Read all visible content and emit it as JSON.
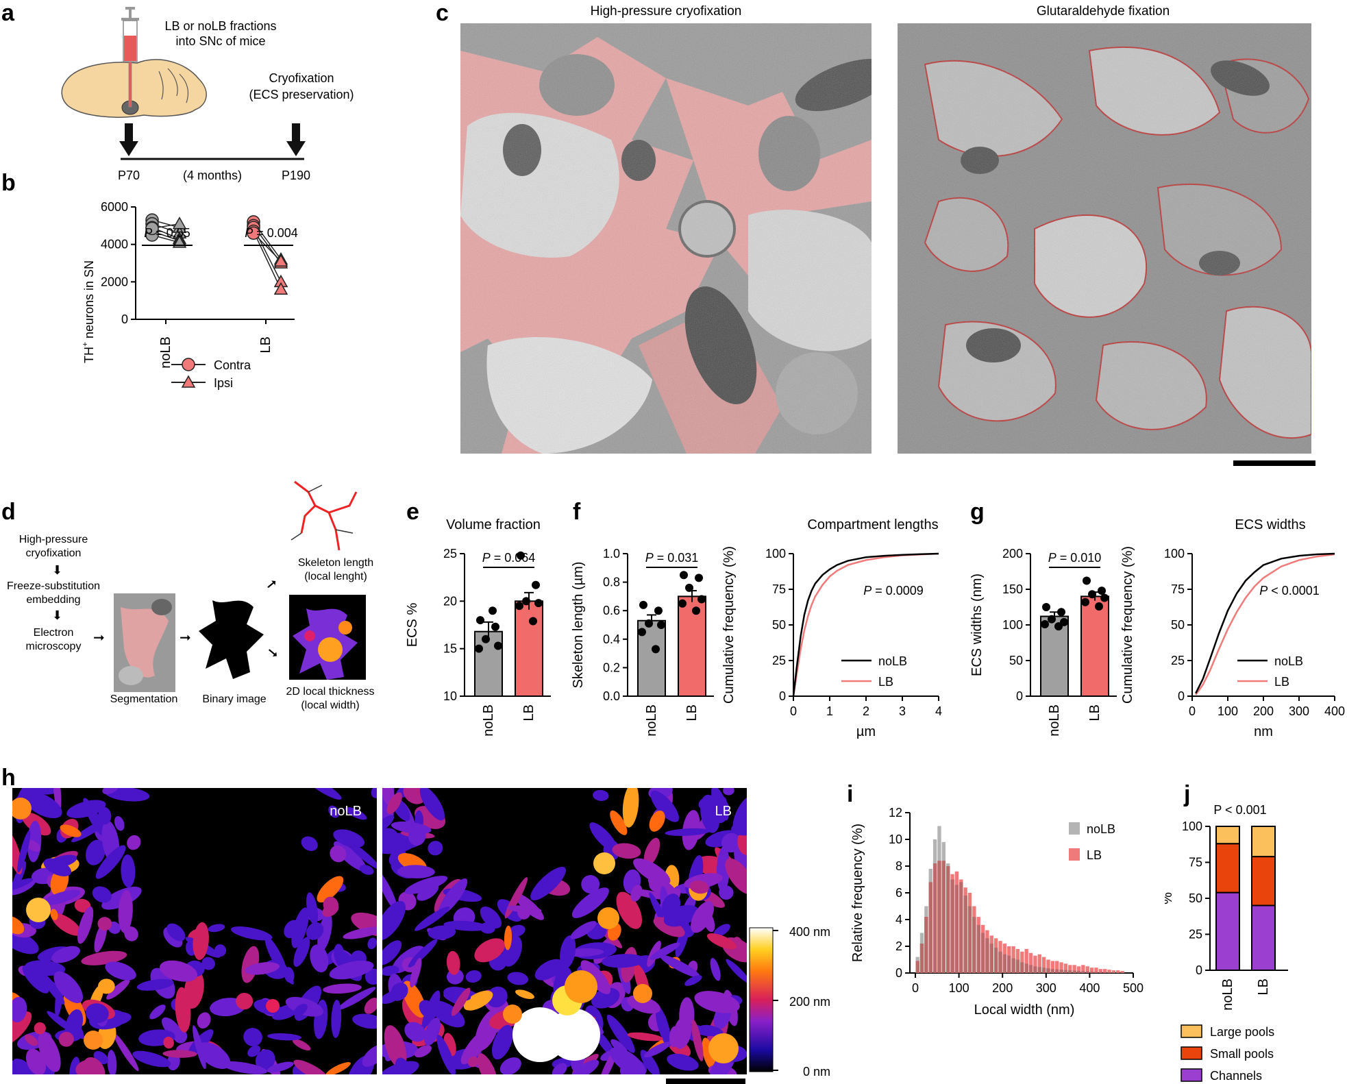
{
  "panels": {
    "a": "a",
    "b": "b",
    "c": "c",
    "d": "d",
    "e": "e",
    "f": "f",
    "g": "g",
    "h": "h",
    "i": "i",
    "j": "j"
  },
  "panel_a": {
    "syringe_text_1": "LB or noLB fractions",
    "syringe_text_2": "into SNc of mice",
    "cryo_text_1": "Cryofixation",
    "cryo_text_2": "(ECS preservation)",
    "start": "P70",
    "duration": "(4 months)",
    "end": "P190",
    "colors": {
      "brain": "#f5d6a0",
      "syringe": "#e85a5a"
    }
  },
  "panel_c": {
    "left_title": "High-pressure cryofixation",
    "right_title": "Glutaraldehyde fixation"
  },
  "panel_d": {
    "step1_1": "High-pressure",
    "step1_2": "cryofixation",
    "step2_1": "Freeze-substitution",
    "step2_2": "embedding",
    "step3_1": "Electron",
    "step3_2": "microscopy",
    "segmentation": "Segmentation",
    "binary": "Binary image",
    "skeleton_1": "Skeleton length",
    "skeleton_2": "(local lenght)",
    "thickness_1": "2D local thickness",
    "thickness_2": "(local width)"
  },
  "panel_h": {
    "left_label": "noLB",
    "right_label": "LB",
    "scale_max": "400 nm",
    "scale_mid": "200 nm",
    "scale_min": "0 nm"
  },
  "chart_data": [
    {
      "id": "b",
      "type": "scatter",
      "ylabel": "TH+ neurons in SN",
      "ylabel_main": "TH",
      "ylabel_sup": "+",
      "ylabel_rest": " neurons in SN",
      "categories": [
        "noLB",
        "LB"
      ],
      "ylim": [
        0,
        6000
      ],
      "yticks": [
        "0",
        "2000",
        "4000",
        "6000"
      ],
      "pvalues": [
        "P = 0.55",
        "P = 0.004"
      ],
      "p_italic": "P",
      "p_values_only": [
        " = 0.55",
        " = 0.004"
      ],
      "legend": [
        "Contra",
        "Ipsi"
      ],
      "legend_position": "lower-left",
      "series": [
        {
          "name": "Contra",
          "group": "noLB",
          "values": [
            5300,
            5100,
            4900,
            4700,
            4500,
            4850
          ]
        },
        {
          "name": "Ipsi",
          "group": "noLB",
          "values": [
            4900,
            4600,
            4300,
            4200,
            4100,
            5100
          ]
        },
        {
          "name": "Contra",
          "group": "LB",
          "values": [
            5200,
            5000,
            4900,
            4700,
            4600
          ]
        },
        {
          "name": "Ipsi",
          "group": "LB",
          "values": [
            3200,
            3000,
            2000,
            1600,
            3100
          ]
        }
      ],
      "colors": {
        "noLB": "#a0a0a0",
        "LB": "#f07a7a"
      }
    },
    {
      "id": "e",
      "type": "bar",
      "title": "Volume fraction",
      "ylabel": "ECS %",
      "categories": [
        "noLB",
        "LB"
      ],
      "values": [
        16.8,
        20.0
      ],
      "sem": [
        1.0,
        0.9
      ],
      "points": [
        [
          18.0,
          17.3,
          16.0,
          15.3,
          15.0,
          19.0
        ],
        [
          24.8,
          21.7,
          20.0,
          19.8,
          19.5,
          17.9
        ]
      ],
      "ylim": [
        10,
        25
      ],
      "yticks": [
        "10",
        "15",
        "20",
        "25"
      ],
      "pvalue": "P = 0.064",
      "p_values_only": " = 0.064",
      "colors": {
        "noLB": "#a0a0a0",
        "LB": "#f26b6b"
      }
    },
    {
      "id": "f-bar",
      "type": "bar",
      "ylabel": "Skeleton length (µm)",
      "categories": [
        "noLB",
        "LB"
      ],
      "values": [
        0.53,
        0.7
      ],
      "sem": [
        0.04,
        0.04
      ],
      "points": [
        [
          0.64,
          0.6,
          0.51,
          0.5,
          0.45,
          0.33
        ],
        [
          0.85,
          0.83,
          0.76,
          0.68,
          0.65,
          0.6
        ]
      ],
      "ylim": [
        0,
        1.0
      ],
      "yticks": [
        "0.0",
        "0.2",
        "0.4",
        "0.6",
        "0.8",
        "1.0"
      ],
      "pvalue": "P = 0.031",
      "p_values_only": " = 0.031",
      "colors": {
        "noLB": "#a0a0a0",
        "LB": "#f26b6b"
      }
    },
    {
      "id": "f-cdf",
      "type": "line",
      "title": "Compartment lengths",
      "xlabel": "µm",
      "ylabel": "Cumulative frequency (%)",
      "xlim": [
        0,
        4
      ],
      "ylim": [
        0,
        100
      ],
      "xticks": [
        "0",
        "1",
        "2",
        "3",
        "4"
      ],
      "yticks": [
        "0",
        "25",
        "50",
        "75",
        "100"
      ],
      "pvalue": "P = 0.0009",
      "p_values_only": " = 0.0009",
      "legend_position": "lower-right",
      "series": [
        {
          "name": "noLB",
          "x": [
            0,
            0.1,
            0.2,
            0.3,
            0.4,
            0.5,
            0.6,
            0.8,
            1.0,
            1.2,
            1.5,
            2,
            2.5,
            3,
            3.5,
            4
          ],
          "y": [
            0,
            22,
            42,
            57,
            67,
            74,
            79,
            85,
            89,
            92,
            95,
            97.5,
            98.5,
            99.2,
            99.6,
            100
          ]
        },
        {
          "name": "LB",
          "x": [
            0,
            0.1,
            0.2,
            0.3,
            0.4,
            0.5,
            0.6,
            0.8,
            1.0,
            1.2,
            1.5,
            2,
            2.5,
            3,
            3.5,
            4
          ],
          "y": [
            0,
            17,
            33,
            46,
            56,
            64,
            70,
            78,
            84,
            88,
            92,
            95.5,
            97.5,
            98.8,
            99.4,
            100
          ]
        }
      ],
      "colors": {
        "noLB": "#000000",
        "LB": "#f07a7a"
      }
    },
    {
      "id": "g-bar",
      "type": "bar",
      "ylabel": "ECS widths (nm)",
      "categories": [
        "noLB",
        "LB"
      ],
      "values": [
        112,
        140
      ],
      "sem": [
        6,
        6
      ],
      "points": [
        [
          125,
          118,
          108,
          104,
          101,
          98
        ],
        [
          162,
          148,
          143,
          138,
          132,
          126
        ]
      ],
      "ylim": [
        0,
        200
      ],
      "yticks": [
        "0",
        "50",
        "100",
        "150",
        "200"
      ],
      "pvalue": "P = 0.010",
      "p_values_only": " = 0.010",
      "colors": {
        "noLB": "#a0a0a0",
        "LB": "#f26b6b"
      }
    },
    {
      "id": "g-cdf",
      "type": "line",
      "title": "ECS widths",
      "xlabel": "nm",
      "ylabel": "Cumulative frequency (%)",
      "xlim": [
        0,
        400
      ],
      "ylim": [
        0,
        100
      ],
      "xticks": [
        "0",
        "100",
        "200",
        "300",
        "400"
      ],
      "yticks": [
        "0",
        "25",
        "50",
        "75",
        "100"
      ],
      "pvalue": "P < 0.0001",
      "p_values_only": " < 0.0001",
      "legend_position": "lower-right",
      "series": [
        {
          "name": "noLB",
          "x": [
            10,
            30,
            50,
            75,
            100,
            125,
            150,
            175,
            200,
            250,
            300,
            350,
            400
          ],
          "y": [
            2,
            12,
            26,
            44,
            60,
            72,
            81,
            87,
            92,
            96.5,
            98.5,
            99.5,
            100
          ]
        },
        {
          "name": "LB",
          "x": [
            10,
            30,
            50,
            75,
            100,
            125,
            150,
            175,
            200,
            250,
            300,
            350,
            400
          ],
          "y": [
            1,
            8,
            18,
            33,
            47,
            59,
            69,
            77,
            83,
            91,
            95.5,
            98,
            99.5
          ]
        }
      ],
      "colors": {
        "noLB": "#000000",
        "LB": "#f07a7a"
      }
    },
    {
      "id": "i",
      "type": "bar",
      "xlabel": "Local width (nm)",
      "ylabel": "Relative frequency (%)",
      "xlim": [
        0,
        500
      ],
      "ylim": [
        0,
        12
      ],
      "xticks": [
        "0",
        "100",
        "200",
        "300",
        "400",
        "500"
      ],
      "yticks": [
        "0",
        "2",
        "4",
        "6",
        "8",
        "10",
        "12"
      ],
      "bin_width": 10,
      "bin_starts": [
        0,
        10,
        20,
        30,
        40,
        50,
        60,
        70,
        80,
        90,
        100,
        110,
        120,
        130,
        140,
        150,
        160,
        170,
        180,
        190,
        200,
        210,
        220,
        230,
        240,
        250,
        260,
        270,
        280,
        290,
        300,
        310,
        320,
        330,
        340,
        350,
        360,
        370,
        380,
        390,
        400,
        410,
        420,
        430,
        440,
        450,
        460,
        470
      ],
      "series": [
        {
          "name": "noLB",
          "values": [
            1.2,
            3.0,
            5.0,
            7.8,
            10.0,
            11.0,
            9.8,
            8.2,
            7.0,
            6.6,
            6.8,
            5.8,
            5.0,
            4.2,
            3.6,
            3.0,
            2.6,
            2.2,
            1.9,
            1.6,
            1.4,
            1.3,
            1.1,
            1.0,
            0.8,
            0.7,
            0.6,
            0.5,
            0.45,
            0.4,
            0.35,
            0.3,
            0.28,
            0.25,
            0.22,
            0.2,
            0.18,
            0.15,
            0.13,
            0.12,
            0.1,
            0.09,
            0.08,
            0.07,
            0.06,
            0.05,
            0.04,
            0.03
          ]
        },
        {
          "name": "LB",
          "values": [
            0.9,
            2.2,
            4.2,
            6.8,
            8.2,
            8.4,
            8.4,
            8.0,
            7.4,
            7.6,
            7.0,
            6.4,
            6.0,
            5.0,
            4.2,
            3.6,
            3.2,
            2.8,
            2.6,
            2.4,
            2.2,
            2.0,
            2.0,
            1.8,
            1.6,
            1.8,
            1.5,
            1.3,
            1.4,
            1.2,
            1.0,
            0.9,
            0.9,
            0.8,
            0.7,
            0.6,
            0.6,
            0.5,
            0.6,
            0.5,
            0.4,
            0.4,
            0.3,
            0.3,
            0.25,
            0.2,
            0.2,
            0.15
          ]
        }
      ],
      "legend": [
        "noLB",
        "LB"
      ],
      "legend_position": "top-right",
      "colors": {
        "noLB": "#b4b4b4",
        "LB": "#f07a7a",
        "overlap": "#b96a6a"
      }
    },
    {
      "id": "j",
      "type": "bar",
      "stacked": true,
      "ylabel": "%",
      "categories": [
        "noLB",
        "LB"
      ],
      "ylim": [
        0,
        100
      ],
      "yticks": [
        "0",
        "25",
        "50",
        "75",
        "100"
      ],
      "pvalue": "P < 0.001",
      "series": [
        {
          "name": "Channels",
          "values": [
            54,
            45
          ]
        },
        {
          "name": "Small pools",
          "values": [
            34,
            34
          ]
        },
        {
          "name": "Large pools",
          "values": [
            12,
            21
          ]
        }
      ],
      "legend": [
        "Large pools",
        "Small pools",
        "Channels"
      ],
      "legend_position": "bottom",
      "colors": {
        "Large pools": "#fbbf5c",
        "Small pools": "#e8440c",
        "Channels": "#9b3fd1"
      }
    }
  ]
}
